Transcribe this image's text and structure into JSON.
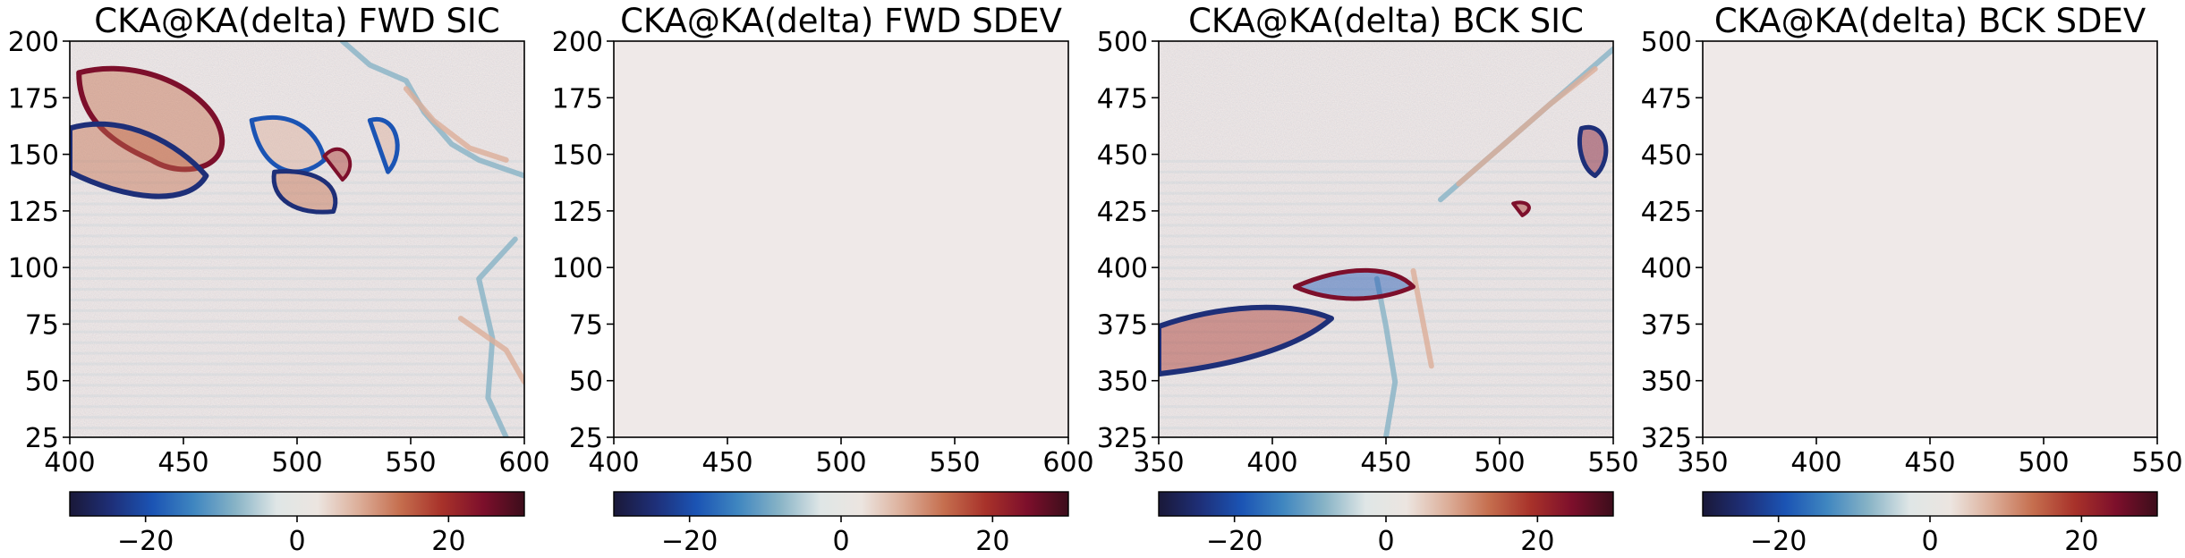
{
  "colors": {
    "background": "#ffffff",
    "uniform_field": "#efe9e8",
    "colormap": [
      "#1a1838",
      "#1e2f78",
      "#1b54b4",
      "#3f86c0",
      "#87b3c6",
      "#dfe6e6",
      "#ece5e0",
      "#dcae99",
      "#c56e4e",
      "#a8322a",
      "#7d0f2b",
      "#3c0d1b"
    ]
  },
  "chart_data": [
    {
      "type": "heatmap",
      "title": "CKA@KA(delta) FWD SIC",
      "field": "noisy",
      "xlim": [
        400,
        600
      ],
      "ylim": [
        25,
        200
      ],
      "xticks": [
        "400",
        "450",
        "500",
        "550",
        "600"
      ],
      "yticks": [
        "25",
        "50",
        "75",
        "100",
        "125",
        "150",
        "175",
        "200"
      ],
      "colorbar": {
        "range": [
          -30,
          30
        ],
        "ticks": [
          -20,
          0,
          20
        ],
        "tick_labels": [
          "−20",
          "0",
          "20"
        ]
      }
    },
    {
      "type": "heatmap",
      "title": "CKA@KA(delta) FWD SDEV",
      "field": "uniform",
      "xlim": [
        400,
        600
      ],
      "ylim": [
        25,
        200
      ],
      "xticks": [
        "400",
        "450",
        "500",
        "550",
        "600"
      ],
      "yticks": [
        "25",
        "50",
        "75",
        "100",
        "125",
        "150",
        "175",
        "200"
      ],
      "colorbar": {
        "range": [
          -30,
          30
        ],
        "ticks": [
          -20,
          0,
          20
        ],
        "tick_labels": [
          "−20",
          "0",
          "20"
        ]
      }
    },
    {
      "type": "heatmap",
      "title": "CKA@KA(delta) BCK SIC",
      "field": "noisy",
      "xlim": [
        350,
        550
      ],
      "ylim": [
        325,
        500
      ],
      "xticks": [
        "350",
        "400",
        "450",
        "500",
        "550"
      ],
      "yticks": [
        "325",
        "350",
        "375",
        "400",
        "425",
        "450",
        "475",
        "500"
      ],
      "colorbar": {
        "range": [
          -30,
          30
        ],
        "ticks": [
          -20,
          0,
          20
        ],
        "tick_labels": [
          "−20",
          "0",
          "20"
        ]
      }
    },
    {
      "type": "heatmap",
      "title": "CKA@KA(delta) BCK SDEV",
      "field": "uniform",
      "xlim": [
        350,
        550
      ],
      "ylim": [
        325,
        500
      ],
      "xticks": [
        "350",
        "400",
        "450",
        "500",
        "550"
      ],
      "yticks": [
        "325",
        "350",
        "375",
        "400",
        "425",
        "450",
        "475",
        "500"
      ],
      "colorbar": {
        "range": [
          -30,
          30
        ],
        "ticks": [
          -20,
          0,
          20
        ],
        "tick_labels": [
          "−20",
          "0",
          "20"
        ]
      }
    }
  ]
}
